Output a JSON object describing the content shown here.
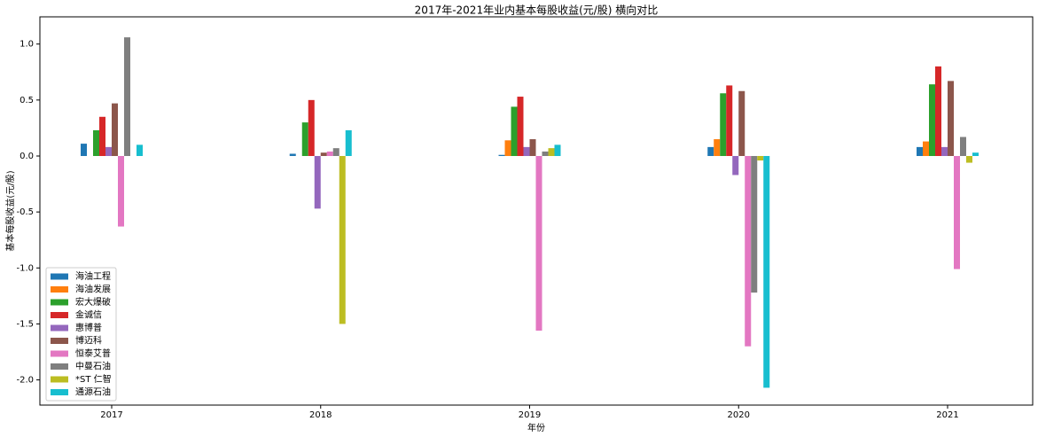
{
  "chart_data": {
    "type": "bar",
    "title": "2017年-2021年业内基本每股收益(元/股) 横向对比",
    "xlabel": "年份",
    "ylabel": "基本每股收益(元/股)",
    "categories": [
      "2017",
      "2018",
      "2019",
      "2020",
      "2021"
    ],
    "series": [
      {
        "name": "海油工程",
        "color": "#1f77b4",
        "values": [
          0.11,
          0.02,
          0.01,
          0.08,
          0.08
        ]
      },
      {
        "name": "海油发展",
        "color": "#ff7f0e",
        "values": [
          0,
          0,
          0.14,
          0.15,
          0.13
        ]
      },
      {
        "name": "宏大爆破",
        "color": "#2ca02c",
        "values": [
          0.23,
          0.3,
          0.44,
          0.56,
          0.64
        ]
      },
      {
        "name": "金诚信",
        "color": "#d62728",
        "values": [
          0.35,
          0.5,
          0.53,
          0.63,
          0.8
        ]
      },
      {
        "name": "惠博普",
        "color": "#9467bd",
        "values": [
          0.08,
          -0.47,
          0.08,
          -0.17,
          0.08
        ]
      },
      {
        "name": "博迈科",
        "color": "#8c564b",
        "values": [
          0.47,
          0.03,
          0.15,
          0.58,
          0.67
        ]
      },
      {
        "name": "恒泰艾普",
        "color": "#e377c2",
        "values": [
          -0.63,
          0.04,
          -1.56,
          -1.7,
          -1.01
        ]
      },
      {
        "name": "中曼石油",
        "color": "#7f7f7f",
        "values": [
          1.06,
          0.07,
          0.04,
          -1.22,
          0.17
        ]
      },
      {
        "name": "*ST 仁智",
        "color": "#bcbd22",
        "values": [
          0,
          -1.5,
          0.07,
          -0.04,
          -0.06
        ]
      },
      {
        "name": "通源石油",
        "color": "#17becf",
        "values": [
          0.1,
          0.23,
          0.1,
          -2.07,
          0.03
        ]
      }
    ],
    "ylim": [
      -2.225,
      1.243
    ],
    "yticks": [
      {
        "value": -2.0,
        "label": "-2.0"
      },
      {
        "value": -1.5,
        "label": "-1.5"
      },
      {
        "value": -1.0,
        "label": "-1.0"
      },
      {
        "value": -0.5,
        "label": "-0.5"
      },
      {
        "value": 0.0,
        "label": "0.0"
      },
      {
        "value": 0.5,
        "label": "0.5"
      },
      {
        "value": 1.0,
        "label": "1.0"
      }
    ],
    "legend": "lower left",
    "grid": false
  }
}
